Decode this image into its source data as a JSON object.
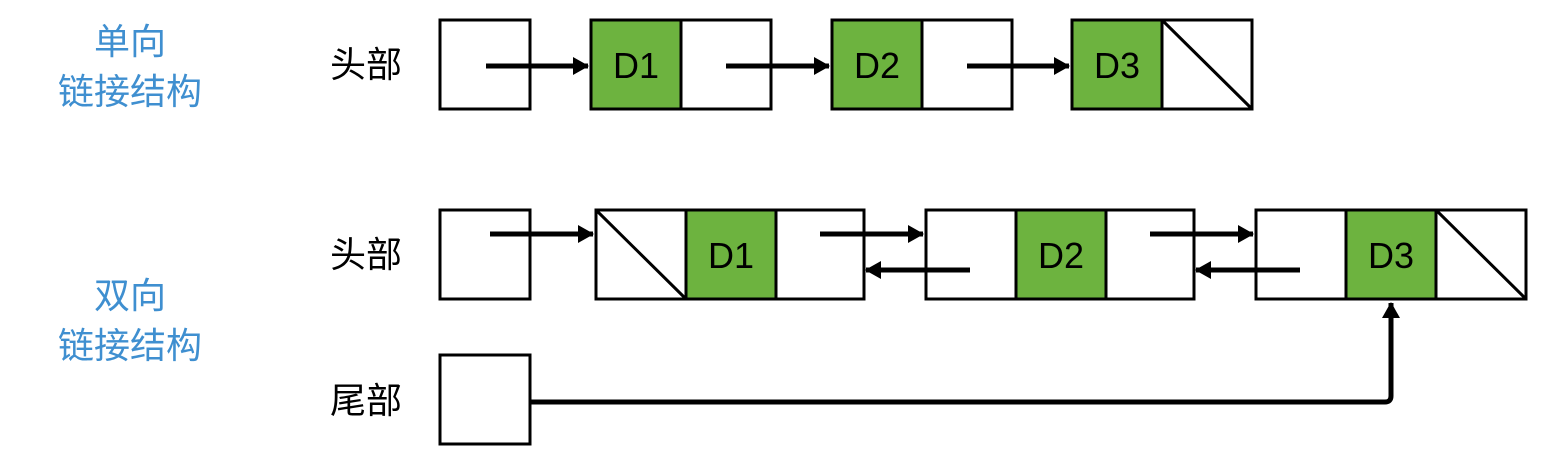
{
  "singly": {
    "title_line1": "单向",
    "title_line2": "链接结构",
    "head_label": "头部",
    "nodes": [
      "D1",
      "D2",
      "D3"
    ]
  },
  "doubly": {
    "title_line1": "双向",
    "title_line2": "链接结构",
    "head_label": "头部",
    "tail_label": "尾部",
    "nodes": [
      "D1",
      "D2",
      "D3"
    ]
  },
  "colors": {
    "data_fill": "#6db33f",
    "title": "#3f8fd0",
    "stroke": "#000000"
  }
}
